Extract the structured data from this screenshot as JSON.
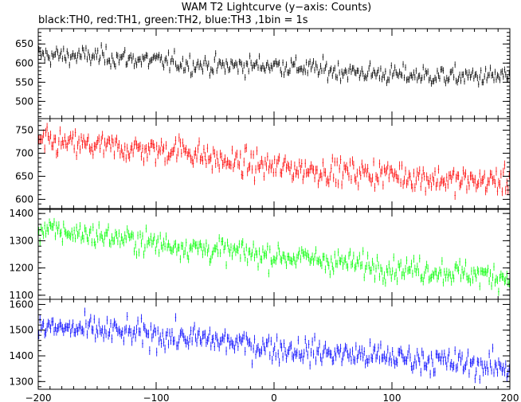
{
  "chart_data": {
    "type": "line",
    "title": "WAM T2 Lightcurve (y−axis: Counts)",
    "subtitle": "black:TH0, red:TH1, green:TH2, blue:TH3 ,1bin = 1s",
    "xlabel": "",
    "ylabel": "",
    "xlim": [
      -200,
      200
    ],
    "x_ticks": [
      "−200",
      "−100",
      "0",
      "100",
      "200"
    ],
    "x_tick_values": [
      -200,
      -100,
      0,
      100,
      200
    ],
    "bin_seconds": 1,
    "grid": false,
    "legend": "none",
    "panels": [
      {
        "series": "TH0",
        "color": "#000000",
        "ylim": [
          455,
          690
        ],
        "y_ticks": [
          "500",
          "550",
          "600",
          "650"
        ],
        "y_tick_values": [
          500,
          550,
          600,
          650
        ],
        "trend": {
          "x": [
            -200,
            -150,
            -100,
            -50,
            0,
            50,
            100,
            150,
            200
          ],
          "y": [
            620,
            618,
            605,
            592,
            595,
            580,
            570,
            565,
            565
          ]
        },
        "noise_amplitude": 24
      },
      {
        "series": "TH1",
        "color": "#ff0000",
        "ylim": [
          580,
          775
        ],
        "y_ticks": [
          "600",
          "650",
          "700",
          "750"
        ],
        "y_tick_values": [
          600,
          650,
          700,
          750
        ],
        "trend": {
          "x": [
            -200,
            -150,
            -100,
            -80,
            -50,
            0,
            50,
            100,
            150,
            200
          ],
          "y": [
            725,
            715,
            705,
            710,
            685,
            670,
            660,
            655,
            640,
            640
          ]
        },
        "noise_amplitude": 27
      },
      {
        "series": "TH2",
        "color": "#00ff00",
        "ylim": [
          1085,
          1415
        ],
        "y_ticks": [
          "1100",
          "1200",
          "1300",
          "1400"
        ],
        "y_tick_values": [
          1100,
          1200,
          1300,
          1400
        ],
        "trend": {
          "x": [
            -200,
            -150,
            -100,
            -50,
            0,
            50,
            100,
            150,
            200
          ],
          "y": [
            1340,
            1320,
            1290,
            1265,
            1245,
            1225,
            1200,
            1185,
            1165
          ]
        },
        "noise_amplitude": 42
      },
      {
        "series": "TH3",
        "color": "#0000ff",
        "ylim": [
          1270,
          1620
        ],
        "y_ticks": [
          "1300",
          "1400",
          "1500",
          "1600"
        ],
        "y_tick_values": [
          1300,
          1400,
          1500,
          1600
        ],
        "trend": {
          "x": [
            -200,
            -150,
            -100,
            -50,
            0,
            50,
            100,
            150,
            200
          ],
          "y": [
            1510,
            1500,
            1480,
            1460,
            1430,
            1410,
            1395,
            1375,
            1350
          ]
        },
        "noise_amplitude": 48
      }
    ]
  }
}
